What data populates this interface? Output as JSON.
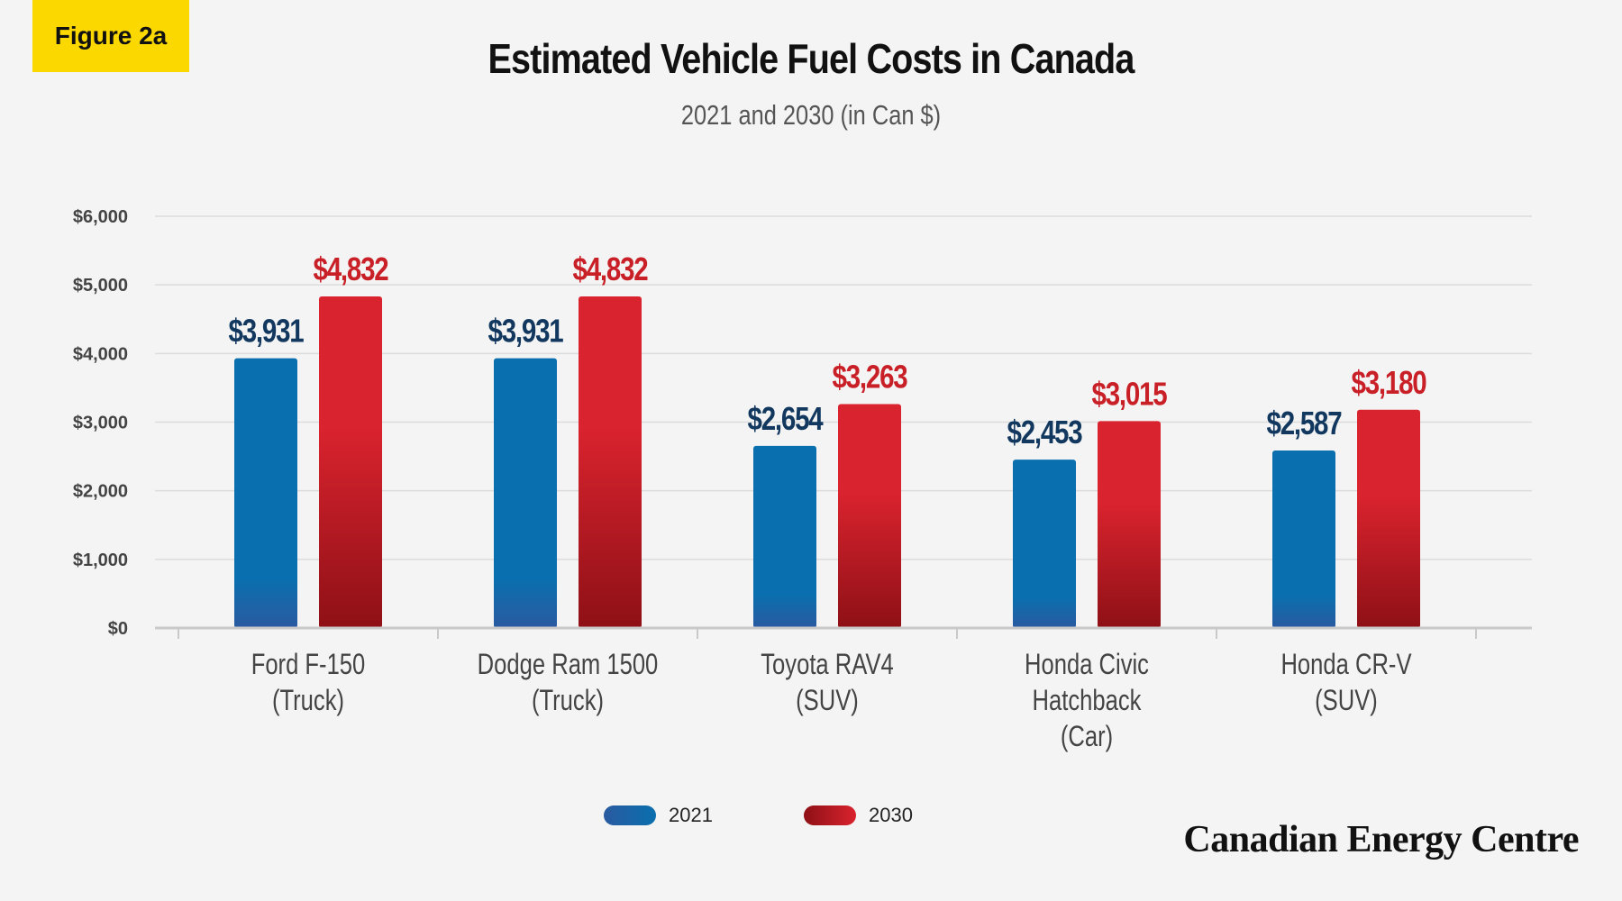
{
  "badge": "Figure 2a",
  "colors": {
    "series_2021_top": "#0a6fae",
    "series_2021_bottom": "#2a5aa0",
    "series_2030_top": "#d9232e",
    "series_2030_bottom": "#8e1016",
    "label_2021": "#12385f",
    "label_2030": "#c92028"
  },
  "chart_data": {
    "type": "bar",
    "title": "Estimated Vehicle Fuel Costs in Canada",
    "subtitle": "2021 and 2030 (in Can $)",
    "categories": [
      [
        "Ford F-150",
        "(Truck)"
      ],
      [
        "Dodge Ram 1500",
        "(Truck)"
      ],
      [
        "Toyota RAV4",
        "(SUV)"
      ],
      [
        "Honda Civic",
        "Hatchback",
        "(Car)"
      ],
      [
        "Honda CR-V",
        "(SUV)"
      ]
    ],
    "series": [
      {
        "name": "2021",
        "values": [
          3931,
          3931,
          2654,
          2453,
          2587
        ],
        "labels": [
          "$3,931",
          "$3,931",
          "$2,654",
          "$2,453",
          "$2,587"
        ]
      },
      {
        "name": "2030",
        "values": [
          4832,
          4832,
          3263,
          3015,
          3180
        ],
        "labels": [
          "$4,832",
          "$4,832",
          "$3,263",
          "$3,015",
          "$3,180"
        ]
      }
    ],
    "ylim": [
      0,
      6000
    ],
    "yticks": [
      "$0",
      "$1,000",
      "$2,000",
      "$3,000",
      "$4,000",
      "$5,000",
      "$6,000"
    ],
    "grid": true,
    "legend": "bottom-center"
  },
  "source": "Canadian Energy Centre"
}
